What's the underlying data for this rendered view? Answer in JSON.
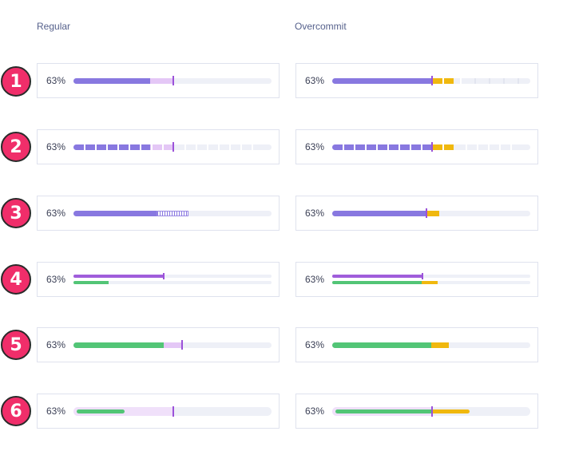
{
  "columns": {
    "regular": "Regular",
    "overcommit": "Overcommit"
  },
  "colors": {
    "track": "#eef0f7",
    "progress": "#8878e0",
    "commit": "#e4c7f6",
    "marker": "#9b52d9",
    "green": "#52c576",
    "overcommit": "#f0b80e",
    "badge": "#f02e6a"
  },
  "rows": [
    {
      "badge": "1",
      "regular_label": "63%",
      "overcommit_label": "63%"
    },
    {
      "badge": "2",
      "regular_label": "63%",
      "overcommit_label": "63%"
    },
    {
      "badge": "3",
      "regular_label": "63%",
      "overcommit_label": "63%"
    },
    {
      "badge": "4",
      "regular_label": "63%",
      "overcommit_label": "63%"
    },
    {
      "badge": "5",
      "regular_label": "63%",
      "overcommit_label": "63%"
    },
    {
      "badge": "6",
      "regular_label": "63%",
      "overcommit_label": "63%"
    }
  ]
}
